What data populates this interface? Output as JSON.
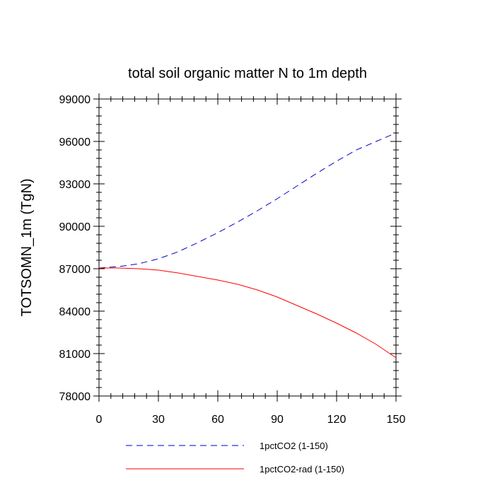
{
  "chart_data": {
    "type": "line",
    "title": "total soil organic matter N to 1m depth",
    "xlabel": "",
    "ylabel": "TOTSOMN_1m  (TgN)",
    "xlim": [
      0,
      150
    ],
    "ylim": [
      78000,
      99000
    ],
    "xticks": [
      0,
      30,
      60,
      90,
      120,
      150
    ],
    "yticks": [
      78000,
      81000,
      84000,
      87000,
      90000,
      93000,
      96000,
      99000
    ],
    "grid": false,
    "legend_position": "bottom",
    "series": [
      {
        "name": "1pctCO2 (1-150)",
        "color": "#0000cc",
        "dash": "dashed",
        "x": [
          0,
          10,
          20,
          30,
          40,
          50,
          60,
          70,
          80,
          90,
          100,
          110,
          120,
          130,
          140,
          150
        ],
        "y": [
          87050,
          87150,
          87350,
          87700,
          88200,
          88850,
          89550,
          90300,
          91100,
          91950,
          92850,
          93750,
          94600,
          95400,
          96000,
          96600
        ]
      },
      {
        "name": "1pctCO2-rad (1-150)",
        "color": "#ff0000",
        "dash": "solid",
        "x": [
          0,
          10,
          20,
          30,
          40,
          50,
          60,
          70,
          80,
          90,
          100,
          110,
          120,
          130,
          140,
          150
        ],
        "y": [
          87050,
          87050,
          87000,
          86900,
          86700,
          86450,
          86200,
          85900,
          85500,
          85000,
          84400,
          83800,
          83150,
          82450,
          81650,
          80700
        ]
      }
    ]
  }
}
